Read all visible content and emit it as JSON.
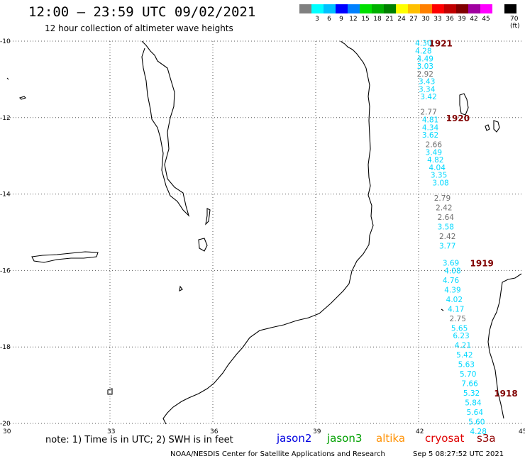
{
  "header": {
    "title": "12:00 – 23:59 UTC 09/02/2021",
    "subtitle": "12 hour collection of altimeter wave heights"
  },
  "color_scale": {
    "unit": "70 (ft)",
    "swatches": [
      {
        "color": "#808080",
        "label": ""
      },
      {
        "color": "#00ffff",
        "label": "3"
      },
      {
        "color": "#00c0ff",
        "label": "6"
      },
      {
        "color": "#0000ff",
        "label": "9"
      },
      {
        "color": "#0080ff",
        "label": "12"
      },
      {
        "color": "#00e000",
        "label": "15"
      },
      {
        "color": "#00b000",
        "label": "18"
      },
      {
        "color": "#008000",
        "label": "21"
      },
      {
        "color": "#ffff00",
        "label": "24"
      },
      {
        "color": "#ffc000",
        "label": "27"
      },
      {
        "color": "#ff8000",
        "label": "30"
      },
      {
        "color": "#ff0000",
        "label": "33"
      },
      {
        "color": "#c00000",
        "label": "36"
      },
      {
        "color": "#800000",
        "label": "39"
      },
      {
        "color": "#a000a0",
        "label": "42"
      },
      {
        "color": "#ff00ff",
        "label": "45"
      },
      {
        "color": "#ffffff",
        "label": ""
      },
      {
        "color": "#000000",
        "label": ""
      }
    ]
  },
  "map": {
    "lon_range": [
      30,
      45
    ],
    "lat_range": [
      -20,
      -10
    ],
    "lon_ticks": [
      "30",
      "33",
      "36",
      "39",
      "42",
      "45"
    ],
    "lat_ticks": [
      "-10",
      "-12",
      "-14",
      "-16",
      "-18",
      "-20"
    ],
    "grid": "dotted",
    "colors": {
      "cyan": "#00d8ff",
      "gray": "#707070",
      "hour": "#800000"
    },
    "hour_labels": [
      {
        "text": "1921",
        "lon": 42.3,
        "lat": -10.05
      },
      {
        "text": "1920",
        "lon": 42.8,
        "lat": -12.0
      },
      {
        "text": "1919",
        "lon": 43.5,
        "lat": -15.8
      },
      {
        "text": "1918",
        "lon": 44.2,
        "lat": -19.2
      }
    ],
    "swh_values": [
      {
        "v": "4.30",
        "c": "cyan",
        "lon": 41.9,
        "lat": -10.05
      },
      {
        "v": "4.28",
        "c": "cyan",
        "lon": 41.9,
        "lat": -10.25
      },
      {
        "v": "4.49",
        "c": "cyan",
        "lon": 41.95,
        "lat": -10.45
      },
      {
        "v": "3.03",
        "c": "cyan",
        "lon": 41.95,
        "lat": -10.65
      },
      {
        "v": "2.92",
        "c": "gray",
        "lon": 41.95,
        "lat": -10.85
      },
      {
        "v": "3.43",
        "c": "cyan",
        "lon": 42.0,
        "lat": -11.05
      },
      {
        "v": "3.34",
        "c": "cyan",
        "lon": 42.0,
        "lat": -11.25
      },
      {
        "v": "3.42",
        "c": "cyan",
        "lon": 42.05,
        "lat": -11.45
      },
      {
        "v": "2.77",
        "c": "gray",
        "lon": 42.05,
        "lat": -11.85
      },
      {
        "v": "4.81",
        "c": "cyan",
        "lon": 42.1,
        "lat": -12.05
      },
      {
        "v": "4.34",
        "c": "cyan",
        "lon": 42.1,
        "lat": -12.25
      },
      {
        "v": "3.62",
        "c": "cyan",
        "lon": 42.1,
        "lat": -12.45
      },
      {
        "v": "2.66",
        "c": "gray",
        "lon": 42.2,
        "lat": -12.7
      },
      {
        "v": "3.49",
        "c": "cyan",
        "lon": 42.2,
        "lat": -12.9
      },
      {
        "v": "4.82",
        "c": "cyan",
        "lon": 42.25,
        "lat": -13.1
      },
      {
        "v": "4.04",
        "c": "cyan",
        "lon": 42.3,
        "lat": -13.3
      },
      {
        "v": "3.35",
        "c": "cyan",
        "lon": 42.35,
        "lat": -13.5
      },
      {
        "v": "3.08",
        "c": "cyan",
        "lon": 42.4,
        "lat": -13.7
      },
      {
        "v": "2.79",
        "c": "gray",
        "lon": 42.45,
        "lat": -14.1
      },
      {
        "v": "2.42",
        "c": "gray",
        "lon": 42.5,
        "lat": -14.35
      },
      {
        "v": "2.64",
        "c": "gray",
        "lon": 42.55,
        "lat": -14.6
      },
      {
        "v": "3.58",
        "c": "cyan",
        "lon": 42.55,
        "lat": -14.85
      },
      {
        "v": "2.42",
        "c": "gray",
        "lon": 42.6,
        "lat": -15.1
      },
      {
        "v": "3.77",
        "c": "cyan",
        "lon": 42.6,
        "lat": -15.35
      },
      {
        "v": "3.69",
        "c": "cyan",
        "lon": 42.7,
        "lat": -15.8
      },
      {
        "v": "4.08",
        "c": "cyan",
        "lon": 42.75,
        "lat": -16.0
      },
      {
        "v": "4.76",
        "c": "cyan",
        "lon": 42.7,
        "lat": -16.25
      },
      {
        "v": "4.39",
        "c": "cyan",
        "lon": 42.75,
        "lat": -16.5
      },
      {
        "v": "4.02",
        "c": "cyan",
        "lon": 42.8,
        "lat": -16.75
      },
      {
        "v": "4.17",
        "c": "cyan",
        "lon": 42.85,
        "lat": -17.0
      },
      {
        "v": "2.75",
        "c": "gray",
        "lon": 42.9,
        "lat": -17.25
      },
      {
        "v": "5.65",
        "c": "cyan",
        "lon": 42.95,
        "lat": -17.5
      },
      {
        "v": "6.23",
        "c": "cyan",
        "lon": 43.0,
        "lat": -17.7
      },
      {
        "v": "4.21",
        "c": "cyan",
        "lon": 43.05,
        "lat": -17.95
      },
      {
        "v": "5.42",
        "c": "cyan",
        "lon": 43.1,
        "lat": -18.2
      },
      {
        "v": "5.63",
        "c": "cyan",
        "lon": 43.15,
        "lat": -18.45
      },
      {
        "v": "5.70",
        "c": "cyan",
        "lon": 43.2,
        "lat": -18.7
      },
      {
        "v": "7.66",
        "c": "cyan",
        "lon": 43.25,
        "lat": -18.95
      },
      {
        "v": "5.32",
        "c": "cyan",
        "lon": 43.3,
        "lat": -19.2
      },
      {
        "v": "5.84",
        "c": "cyan",
        "lon": 43.35,
        "lat": -19.45
      },
      {
        "v": "5.64",
        "c": "cyan",
        "lon": 43.4,
        "lat": -19.7
      },
      {
        "v": "5.60",
        "c": "cyan",
        "lon": 43.45,
        "lat": -19.95
      },
      {
        "v": "4.28",
        "c": "cyan",
        "lon": 43.5,
        "lat": -20.2
      }
    ]
  },
  "note": "note:  1) Time is in UTC;  2) SWH is in feet",
  "legend": [
    {
      "label": "jason2",
      "color": "#0000e0"
    },
    {
      "label": "jason3",
      "color": "#00a000"
    },
    {
      "label": "altika",
      "color": "#ff9000"
    },
    {
      "label": "cryosat",
      "color": "#e00000"
    },
    {
      "label": "s3a",
      "color": "#900000"
    }
  ],
  "footer": {
    "credit": "NOAA/NESDIS Center for Satellite Applications and Research",
    "timestamp": "Sep  5 08:27:52 UTC 2021"
  }
}
